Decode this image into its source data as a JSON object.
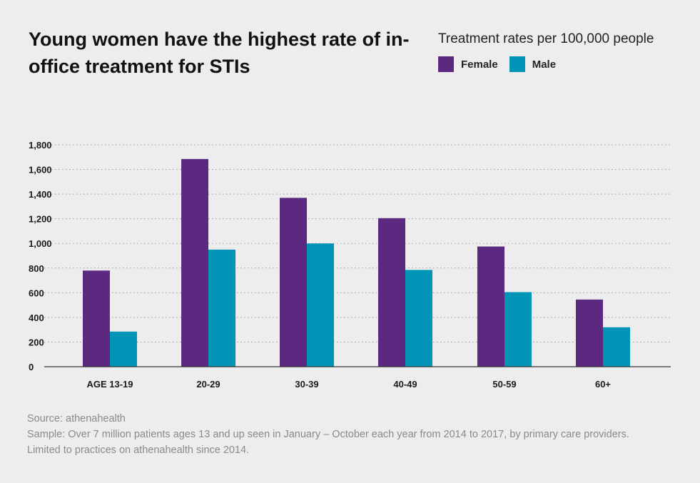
{
  "header": {
    "title": "Young women have the highest rate of in-office treatment for STIs"
  },
  "legend": {
    "title": "Treatment rates per 100,000 people",
    "items": [
      {
        "label": "Female",
        "color": "#5b2a80"
      },
      {
        "label": "Male",
        "color": "#0095b6"
      }
    ]
  },
  "chart_data": {
    "type": "bar",
    "categories": [
      "AGE 13-19",
      "20-29",
      "30-39",
      "40-49",
      "50-59",
      "60+"
    ],
    "series": [
      {
        "name": "Female",
        "color": "#5b2a80",
        "values": [
          780,
          1685,
          1370,
          1205,
          975,
          545
        ]
      },
      {
        "name": "Male",
        "color": "#0095b6",
        "values": [
          285,
          950,
          1000,
          785,
          605,
          320
        ]
      }
    ],
    "yticks": [
      0,
      200,
      400,
      600,
      800,
      1000,
      1200,
      1400,
      1600,
      1800
    ],
    "ytick_labels": [
      "0",
      "200",
      "400",
      "600",
      "800",
      "1,000",
      "1,200",
      "1,400",
      "1,600",
      "1,800"
    ],
    "ylim": [
      0,
      1800
    ],
    "grid": "horizontal dotted"
  },
  "footer": {
    "source": "Source: athenahealth",
    "sample_line1": "Sample: Over 7 million patients ages 13 and up seen in January – October each year from 2014 to 2017, by primary care providers.",
    "sample_line2": "Limited to practices on athenahealth since 2014."
  }
}
